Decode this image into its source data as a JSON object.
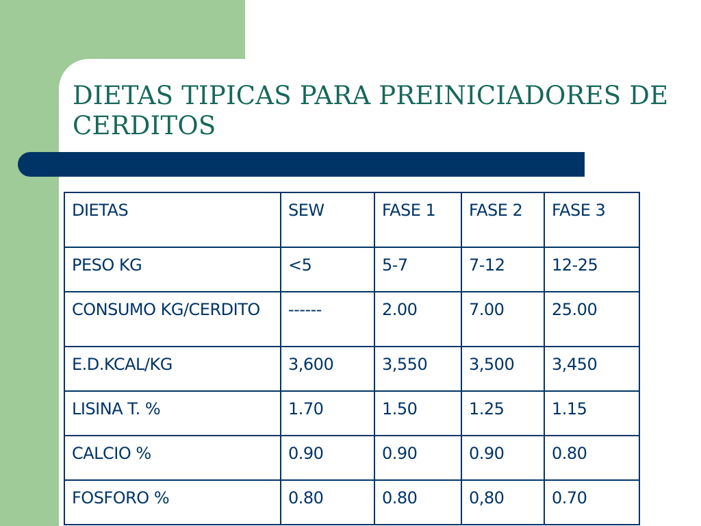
{
  "slide": {
    "title": "DIETAS TIPICAS PARA PREINICIADORES DE CERDITOS",
    "colors": {
      "accent_green": "#9fcb99",
      "title_teal": "#17685a",
      "navy": "#003466"
    }
  },
  "table": {
    "header": [
      "DIETAS",
      "SEW",
      "FASE 1",
      "FASE 2",
      "FASE 3"
    ],
    "rows": [
      [
        "PESO KG",
        "<5",
        "5-7",
        "7-12",
        "12-25"
      ],
      [
        "CONSUMO KG/CERDITO",
        "------",
        "2.00",
        "7.00",
        "25.00"
      ],
      [
        "E.D.KCAL/KG",
        "3,600",
        "3,550",
        "3,500",
        "3,450"
      ],
      [
        "LISINA T. %",
        "1.70",
        "1.50",
        "1.25",
        "1.15"
      ],
      [
        "CALCIO %",
        "0.90",
        "0.90",
        "0.90",
        "0.80"
      ],
      [
        "FOSFORO %",
        "0.80",
        "0.80",
        "0,80",
        "0.70"
      ]
    ]
  }
}
